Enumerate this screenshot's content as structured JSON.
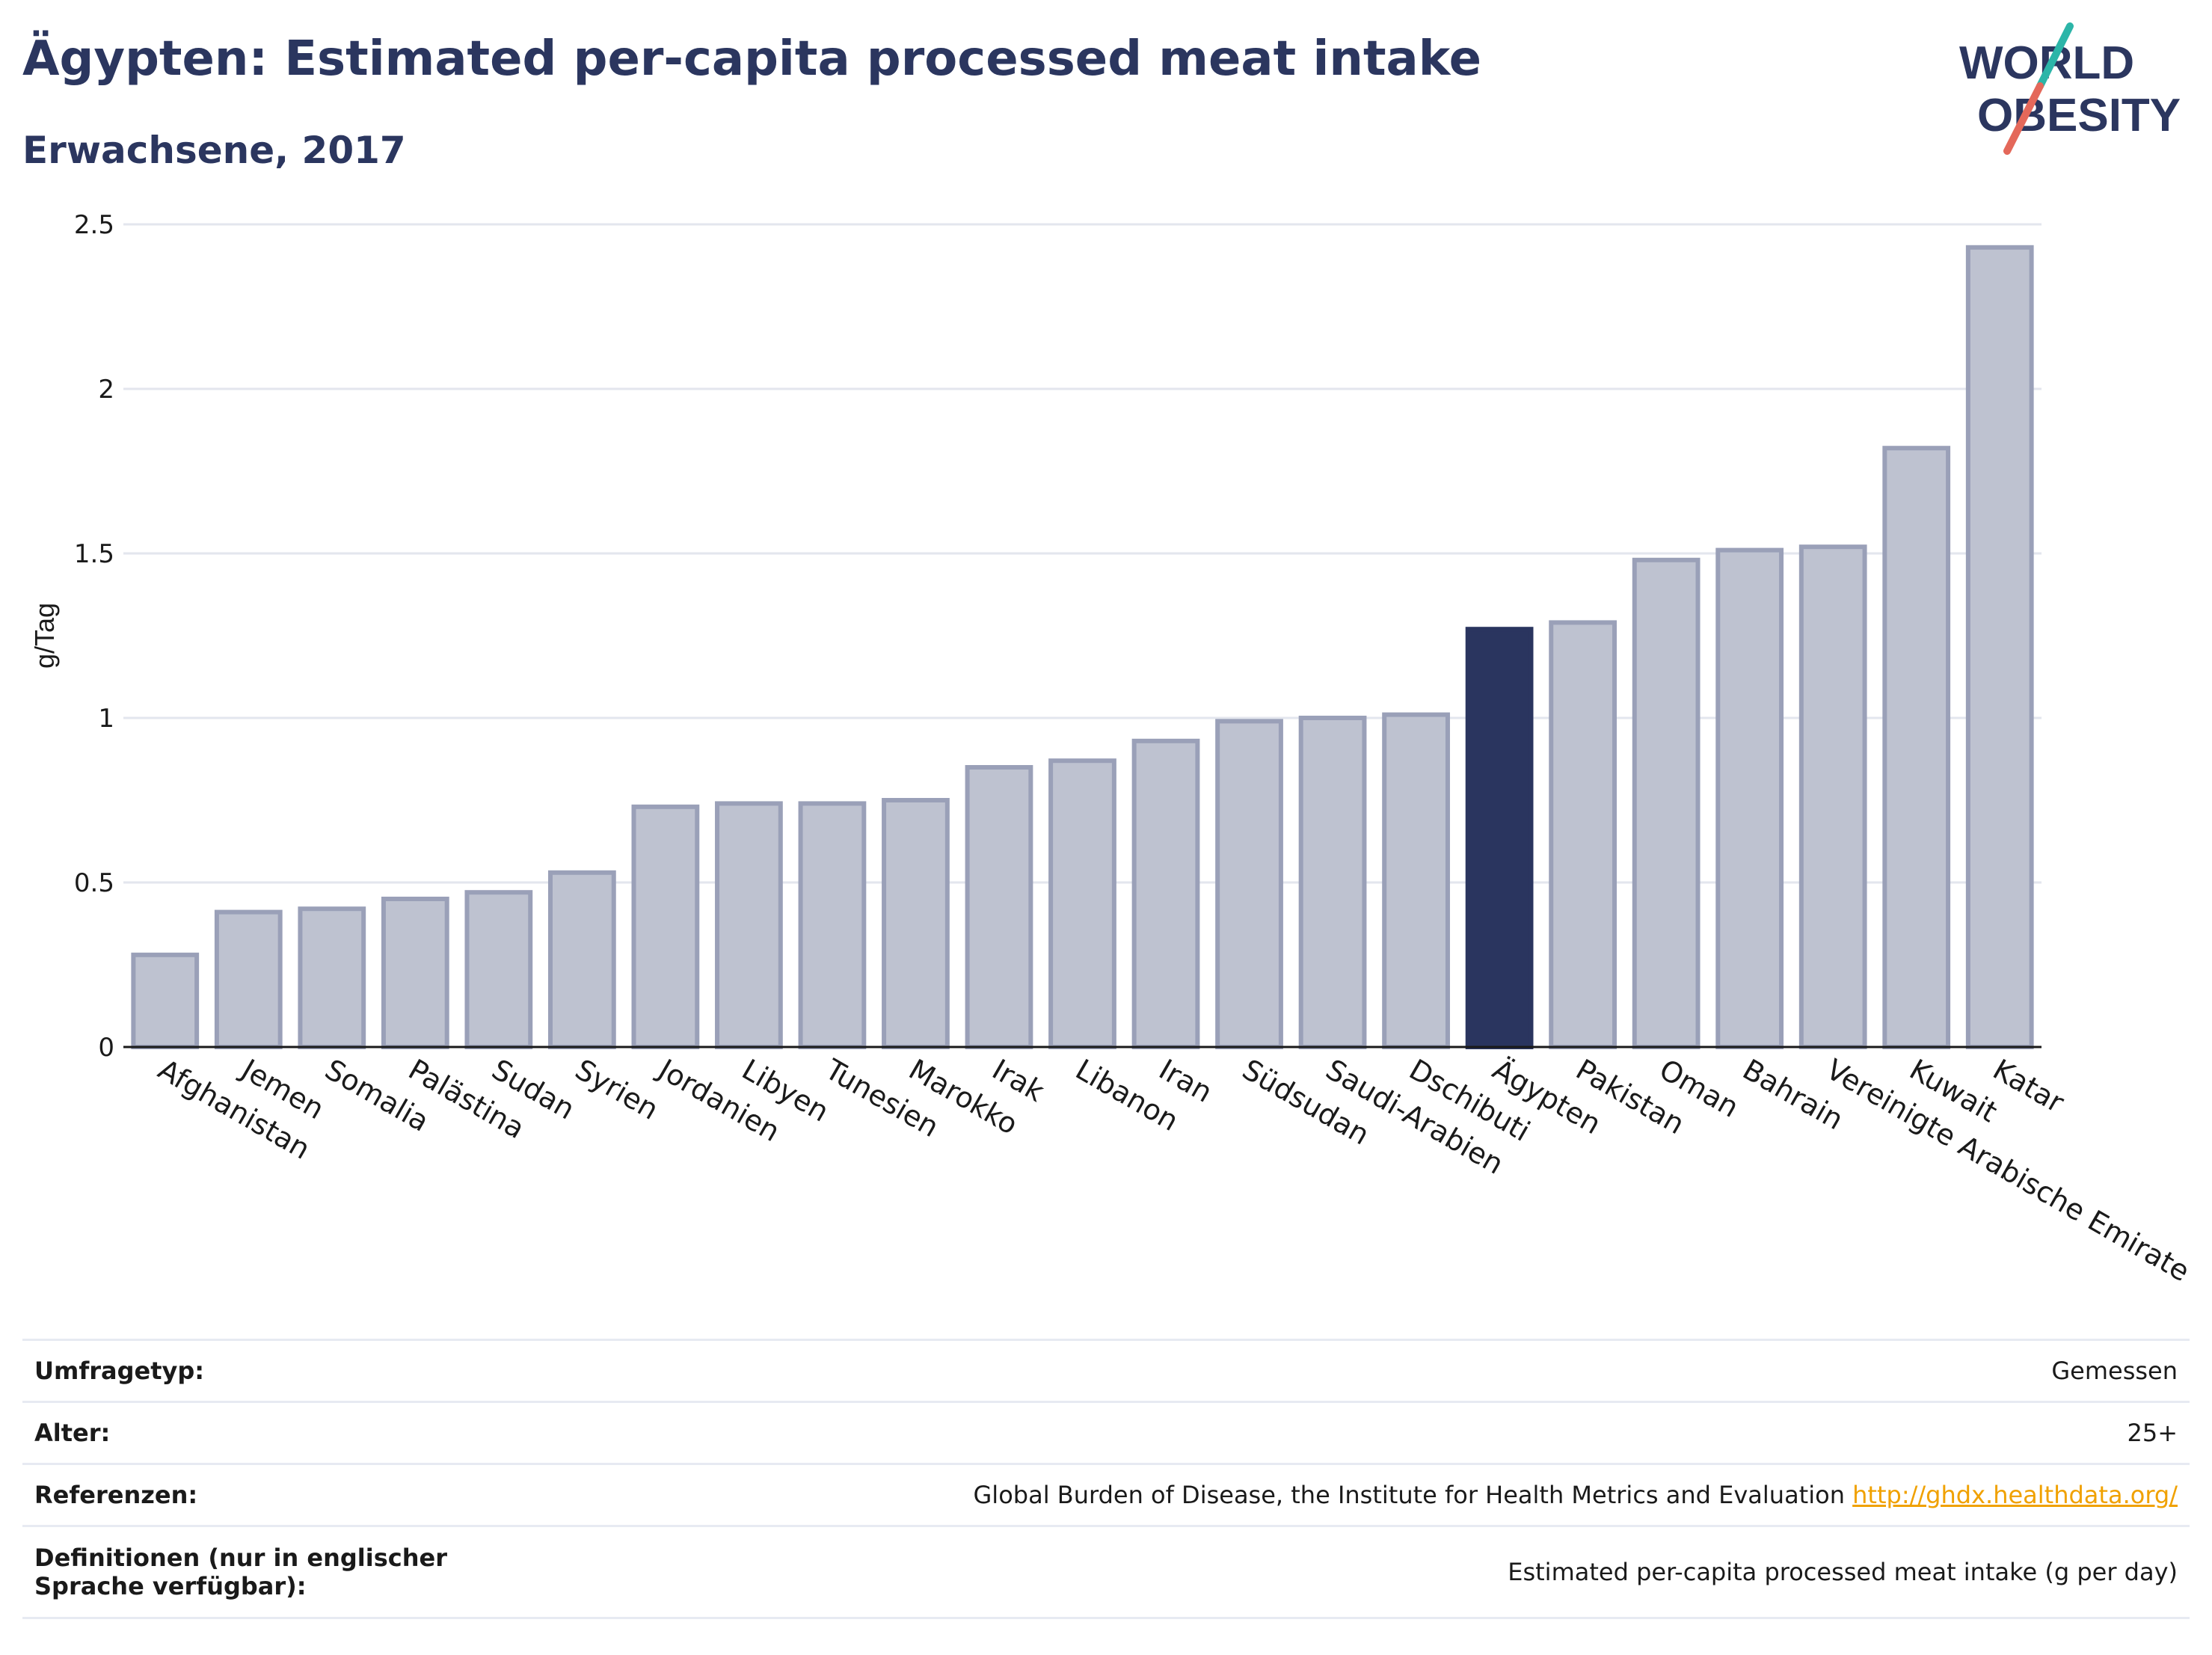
{
  "header": {
    "title": "Ägypten: Estimated per-capita processed meat intake",
    "subtitle": "Erwachsene, 2017"
  },
  "logo": {
    "line1": "WORLD",
    "line2": "OBESITY",
    "accent_colors": [
      "#2cb5a8",
      "#e4685a"
    ],
    "text_color": "#2b365f"
  },
  "chart_data": {
    "type": "bar",
    "ylabel": "g/Tag",
    "xlabel": "",
    "ylim": [
      0,
      2.5
    ],
    "yticks": [
      0,
      0.5,
      1,
      1.5,
      2,
      2.5
    ],
    "ytick_labels": [
      "0",
      "0.5",
      "1",
      "1.5",
      "2",
      "2.5"
    ],
    "grid": true,
    "highlight": "Ägypten",
    "colors": {
      "highlight": "#2a355f",
      "bar_fill": "#bec2d0",
      "bar_stroke": "#9aa0b8"
    },
    "categories": [
      "Afghanistan",
      "Jemen",
      "Somalia",
      "Palästina",
      "Sudan",
      "Syrien",
      "Jordanien",
      "Libyen",
      "Tunesien",
      "Marokko",
      "Irak",
      "Libanon",
      "Iran",
      "Südsudan",
      "Saudi-Arabien",
      "Dschibuti",
      "Ägypten",
      "Pakistan",
      "Oman",
      "Bahrain",
      "Vereinigte Arabische Emirate",
      "Kuwait",
      "Katar"
    ],
    "values": [
      0.28,
      0.41,
      0.42,
      0.45,
      0.47,
      0.53,
      0.73,
      0.74,
      0.74,
      0.75,
      0.85,
      0.87,
      0.93,
      0.99,
      1.0,
      1.01,
      1.27,
      1.29,
      1.48,
      1.51,
      1.52,
      1.82,
      2.43
    ]
  },
  "meta": {
    "survey_type": {
      "label": "Umfragetyp:",
      "value": "Gemessen"
    },
    "age": {
      "label": "Alter:",
      "value": "25+"
    },
    "references": {
      "label": "Referenzen:",
      "value": "Global Burden of Disease, the Institute for Health Metrics and Evaluation",
      "link": "http://ghdx.healthdata.org/"
    },
    "definitions": {
      "label": "Definitionen (nur in englischer Sprache verfügbar):",
      "value": "Estimated per-capita processed meat intake (g per day)"
    }
  }
}
